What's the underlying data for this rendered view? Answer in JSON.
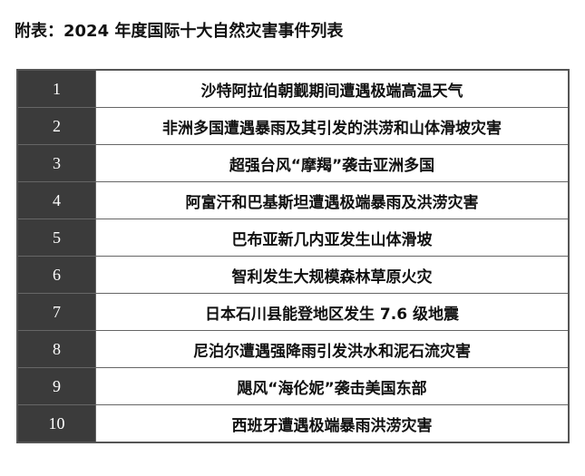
{
  "title": "附表：2024 年度国际十大自然灾害事件列表",
  "colors": {
    "number_cell_bg": "#3b3b3b",
    "number_text": "#ffffff",
    "border": "#666666"
  },
  "rows": [
    {
      "no": "1",
      "event": "沙特阿拉伯朝觐期间遭遇极端高温天气"
    },
    {
      "no": "2",
      "event": "非洲多国遭遇暴雨及其引发的洪涝和山体滑坡灾害"
    },
    {
      "no": "3",
      "event": "超强台风“摩羯”袭击亚洲多国"
    },
    {
      "no": "4",
      "event": "阿富汗和巴基斯坦遭遇极端暴雨及洪涝灾害"
    },
    {
      "no": "5",
      "event": "巴布亚新几内亚发生山体滑坡"
    },
    {
      "no": "6",
      "event": "智利发生大规模森林草原火灾"
    },
    {
      "no": "7",
      "event": "日本石川县能登地区发生 7.6 级地震"
    },
    {
      "no": "8",
      "event": "尼泊尔遭遇强降雨引发洪水和泥石流灾害"
    },
    {
      "no": "9",
      "event": "飓风“海伦妮”袭击美国东部"
    },
    {
      "no": "10",
      "event": "西班牙遭遇极端暴雨洪涝灾害"
    }
  ]
}
